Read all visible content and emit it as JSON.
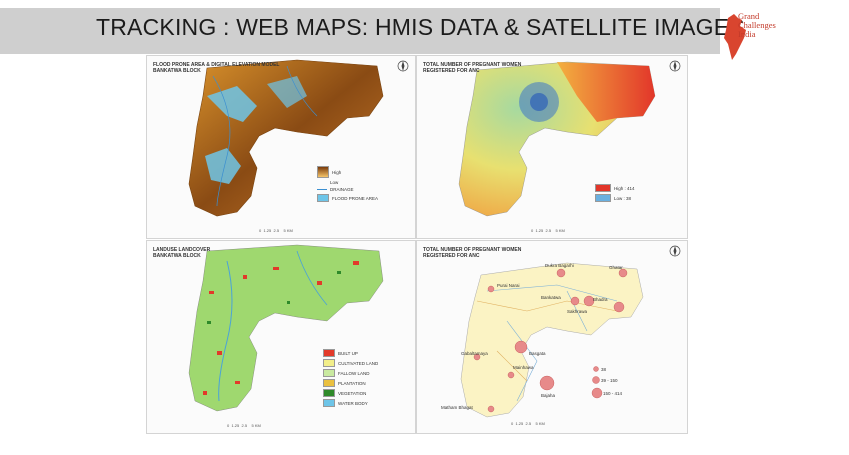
{
  "slide": {
    "title": "TRACKING : WEB MAPS: HMIS DATA & SATELLITE IMAGES",
    "logo_text": "Grand\nChallenges\nIndia",
    "colors": {
      "title_bar": "#cfcfcf",
      "logo": "#c33a2a"
    }
  },
  "maps": [
    {
      "title": "FLOOD PRONE AREA & DIGITAL ELEVATION MODEL\nBANKATWA BLOCK",
      "legend": [
        "High",
        "Low",
        "DRAINAGE",
        "FLOOD PRONE AREA"
      ],
      "scale": [
        "0",
        "1.25",
        "2.5",
        "5 KM"
      ]
    },
    {
      "title": "TOTAL NUMBER OF PREGNANT WOMEN\nREGISTERED FOR ANC",
      "legend": [
        "High : 414",
        "Low : 38"
      ],
      "scale": [
        "0",
        "1.25",
        "2.5",
        "5 KM"
      ]
    },
    {
      "title": "LANDUSE LANDCOVER\nBANKATWA BLOCK",
      "legend": [
        "BUILT UP",
        "CULTIVATED LAND",
        "FALLOW LAND",
        "PLANTATION",
        "VEGETATION",
        "WATER BODY"
      ],
      "scale": [
        "0",
        "1.25",
        "2.5",
        "5 KM"
      ]
    },
    {
      "title": "TOTAL NUMBER OF PREGNANT WOMEN\nREGISTERED FOR ANC",
      "legend": [
        "38",
        "39 - 150",
        "150 - 414"
      ],
      "places": [
        "Dukra Bagarhi",
        "Purai Narai",
        "Bankatwa",
        "Sakhrawa",
        "Ghatar",
        "Bhadra",
        "Basgata",
        "Mainhawa",
        "Gabaltamaya",
        "Matham Bhagat",
        "Bajaha"
      ],
      "scale": [
        "0",
        "1.25",
        "2.5",
        "5 KM"
      ]
    }
  ]
}
